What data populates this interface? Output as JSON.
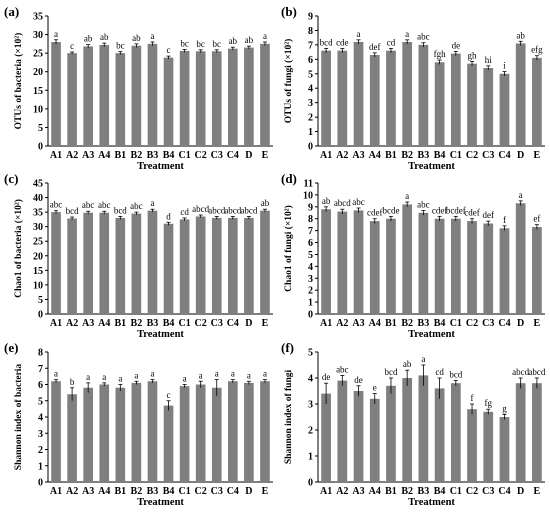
{
  "chart_data": [
    {
      "type": "bar",
      "panel_label": "(a)",
      "ylabel": "OTUs of bacteria (×10²)",
      "xlabel": "Treatment",
      "categories": [
        "A1",
        "A2",
        "A3",
        "A4",
        "B1",
        "B2",
        "B3",
        "B4",
        "C1",
        "C2",
        "C3",
        "C4",
        "D",
        "E"
      ],
      "values": [
        28.0,
        25.0,
        26.8,
        27.2,
        25.0,
        27.0,
        27.5,
        23.8,
        25.6,
        25.5,
        25.5,
        26.2,
        26.5,
        27.5
      ],
      "errors": [
        0.6,
        0.3,
        0.5,
        0.5,
        0.4,
        0.5,
        0.5,
        0.4,
        0.4,
        0.4,
        0.4,
        0.4,
        0.4,
        0.5
      ],
      "significance": [
        "a",
        "c",
        "ab",
        "ab",
        "bc",
        "ab",
        "a",
        "c",
        "bc",
        "bc",
        "bc",
        "ab",
        "ab",
        "a"
      ],
      "ylim": [
        0,
        35
      ],
      "yticks": [
        0,
        5,
        10,
        15,
        20,
        25,
        30,
        35
      ]
    },
    {
      "type": "bar",
      "panel_label": "(b)",
      "ylabel": "OTUs of fungi (×10²)",
      "xlabel": "Treatment",
      "categories": [
        "A1",
        "A2",
        "A3",
        "A4",
        "B1",
        "B2",
        "B3",
        "B4",
        "C1",
        "C2",
        "C3",
        "C4",
        "D",
        "E"
      ],
      "values": [
        6.6,
        6.6,
        7.2,
        6.3,
        6.6,
        7.2,
        7.0,
        5.8,
        6.4,
        5.7,
        5.4,
        5.0,
        7.1,
        6.1
      ],
      "errors": [
        0.15,
        0.15,
        0.15,
        0.15,
        0.15,
        0.15,
        0.15,
        0.15,
        0.15,
        0.15,
        0.15,
        0.15,
        0.15,
        0.15
      ],
      "significance": [
        "bcd",
        "cde",
        "a",
        "def",
        "cd",
        "a",
        "abc",
        "fgh",
        "de",
        "gh",
        "hi",
        "i",
        "ab",
        "efg"
      ],
      "ylim": [
        0,
        9
      ],
      "yticks": [
        0,
        1,
        2,
        3,
        4,
        5,
        6,
        7,
        8,
        9
      ]
    },
    {
      "type": "bar",
      "panel_label": "(c)",
      "ylabel": "Chao1 of bacteria (×10²)",
      "xlabel": "Treatment",
      "categories": [
        "A1",
        "A2",
        "A3",
        "A4",
        "B1",
        "B2",
        "B3",
        "B4",
        "C1",
        "C2",
        "C3",
        "C4",
        "D",
        "E"
      ],
      "values": [
        35.0,
        32.8,
        34.8,
        34.8,
        33.0,
        34.5,
        35.5,
        31.0,
        32.5,
        33.5,
        33.0,
        33.0,
        33.0,
        35.5
      ],
      "errors": [
        0.5,
        0.5,
        0.5,
        0.5,
        0.5,
        0.5,
        0.5,
        0.5,
        0.5,
        0.5,
        0.5,
        0.5,
        0.5,
        0.5
      ],
      "significance": [
        "abc",
        "bcd",
        "abc",
        "abc",
        "bcd",
        "abc",
        "a",
        "d",
        "cd",
        "abcd",
        "abcd",
        "abcd",
        "abcd",
        "ab"
      ],
      "ylim": [
        0,
        45
      ],
      "yticks": [
        0,
        5,
        10,
        15,
        20,
        25,
        30,
        35,
        40,
        45
      ]
    },
    {
      "type": "bar",
      "panel_label": "(d)",
      "ylabel": "Chao1 of fungi (×10²)",
      "xlabel": "Treatment",
      "categories": [
        "A1",
        "A2",
        "A3",
        "A4",
        "B1",
        "B2",
        "B3",
        "B4",
        "C1",
        "C2",
        "C3",
        "C4",
        "D",
        "E"
      ],
      "values": [
        8.8,
        8.6,
        8.7,
        7.8,
        8.0,
        9.2,
        8.5,
        8.0,
        8.0,
        7.8,
        7.6,
        7.2,
        9.3,
        7.3
      ],
      "errors": [
        0.2,
        0.2,
        0.2,
        0.2,
        0.2,
        0.2,
        0.2,
        0.2,
        0.2,
        0.2,
        0.2,
        0.2,
        0.2,
        0.2
      ],
      "significance": [
        "ab",
        "abcd",
        "abc",
        "cdef",
        "bcde",
        "a",
        "abc",
        "cdef",
        "bcdef",
        "cdef",
        "def",
        "f",
        "a",
        "ef"
      ],
      "ylim": [
        0,
        11
      ],
      "yticks": [
        0,
        1,
        2,
        3,
        4,
        5,
        6,
        7,
        8,
        9,
        10,
        11
      ]
    },
    {
      "type": "bar",
      "panel_label": "(e)",
      "ylabel": "Shannon index of bacteria",
      "xlabel": "Treatment",
      "categories": [
        "A1",
        "A2",
        "A3",
        "A4",
        "B1",
        "B2",
        "B3",
        "B4",
        "C1",
        "C2",
        "C3",
        "C4",
        "D",
        "E"
      ],
      "values": [
        6.2,
        5.4,
        5.8,
        6.0,
        5.8,
        6.1,
        6.2,
        4.7,
        5.9,
        6.0,
        5.8,
        6.2,
        6.1,
        6.2
      ],
      "errors": [
        0.1,
        0.4,
        0.3,
        0.1,
        0.2,
        0.1,
        0.1,
        0.3,
        0.1,
        0.2,
        0.5,
        0.1,
        0.1,
        0.1
      ],
      "significance": [
        "a",
        "b",
        "a",
        "a",
        "a",
        "a",
        "a",
        "c",
        "a",
        "a",
        "a",
        "a",
        "a",
        "a"
      ],
      "ylim": [
        0,
        8
      ],
      "yticks": [
        0,
        1,
        2,
        3,
        4,
        5,
        6,
        7,
        8
      ]
    },
    {
      "type": "bar",
      "panel_label": "(f)",
      "ylabel": "Shannon index of fungi",
      "xlabel": "Treatment",
      "categories": [
        "A1",
        "A2",
        "A3",
        "A4",
        "B1",
        "B2",
        "B3",
        "B4",
        "C1",
        "C2",
        "C3",
        "C4",
        "D",
        "E"
      ],
      "values": [
        3.4,
        3.9,
        3.5,
        3.2,
        3.7,
        4.0,
        4.1,
        3.6,
        3.8,
        2.8,
        2.7,
        2.5,
        3.8,
        3.8
      ],
      "errors": [
        0.4,
        0.2,
        0.2,
        0.2,
        0.3,
        0.3,
        0.4,
        0.4,
        0.1,
        0.2,
        0.1,
        0.1,
        0.2,
        0.2
      ],
      "significance": [
        "de",
        "abc",
        "de",
        "e",
        "bcd",
        "ab",
        "a",
        "cd",
        "bcd",
        "f",
        "fg",
        "g",
        "abcd",
        "abcd"
      ],
      "ylim": [
        0,
        5
      ],
      "yticks": [
        0,
        1,
        2,
        3,
        4,
        5
      ]
    }
  ]
}
